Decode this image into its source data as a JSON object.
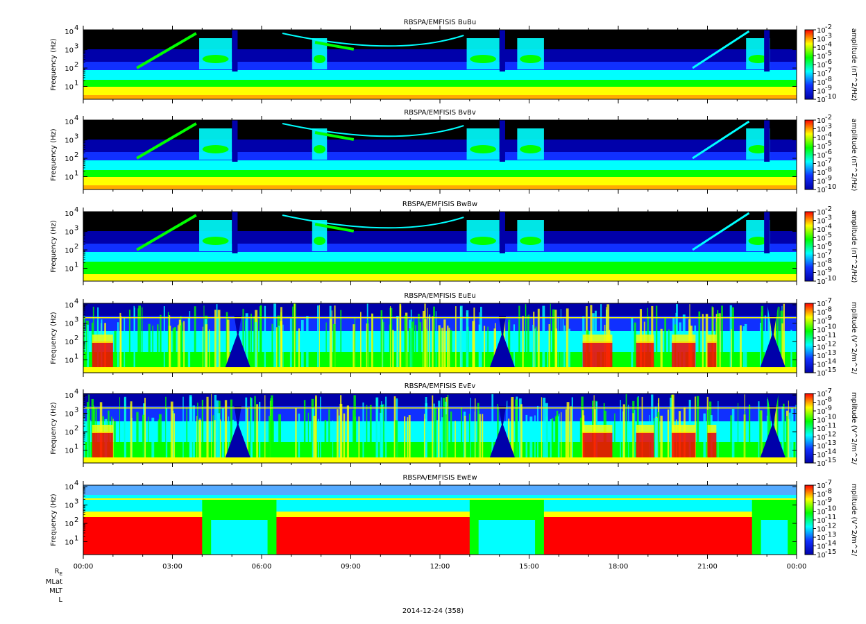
{
  "chart_data": [
    {
      "type": "heatmap",
      "title": "RBSPA/EMFISIS  BuBu",
      "ylabel": "Frequency (Hz)",
      "yscale": "log",
      "ylim": [
        2,
        12000
      ],
      "yticks": [
        "10",
        "10",
        "10",
        "10"
      ],
      "yticks_exp": [
        "1",
        "2",
        "3",
        "4"
      ],
      "colorbar_label": "amplitude (nT^2/Hz)",
      "colorbar_ticks_exp": [
        "-2",
        "-3",
        "-4",
        "-5",
        "-6",
        "-7",
        "-8",
        "-9",
        "-10"
      ],
      "colorbar_range_exp": [
        -10,
        -2
      ],
      "field": "magnetic"
    },
    {
      "type": "heatmap",
      "title": "RBSPA/EMFISIS  BvBv",
      "ylabel": "Frequency (Hz)",
      "yscale": "log",
      "ylim": [
        2,
        12000
      ],
      "yticks": [
        "10",
        "10",
        "10",
        "10"
      ],
      "yticks_exp": [
        "1",
        "2",
        "3",
        "4"
      ],
      "colorbar_label": "amplitude (nT^2/Hz)",
      "colorbar_ticks_exp": [
        "-2",
        "-3",
        "-4",
        "-5",
        "-6",
        "-7",
        "-8",
        "-9",
        "-10"
      ],
      "colorbar_range_exp": [
        -10,
        -2
      ],
      "field": "magnetic"
    },
    {
      "type": "heatmap",
      "title": "RBSPA/EMFISIS  BwBw",
      "ylabel": "Frequency (Hz)",
      "yscale": "log",
      "ylim": [
        2,
        12000
      ],
      "yticks": [
        "10",
        "10",
        "10",
        "10"
      ],
      "yticks_exp": [
        "1",
        "2",
        "3",
        "4"
      ],
      "colorbar_label": "amplitude (nT^2/Hz)",
      "colorbar_ticks_exp": [
        "-2",
        "-3",
        "-4",
        "-5",
        "-6",
        "-7",
        "-8",
        "-9",
        "-10"
      ],
      "colorbar_range_exp": [
        -10,
        -2
      ],
      "field": "magnetic_w"
    },
    {
      "type": "heatmap",
      "title": "RBSPA/EMFISIS  EuEu",
      "ylabel": "Frequency (Hz)",
      "yscale": "log",
      "ylim": [
        2,
        12000
      ],
      "yticks": [
        "10",
        "10",
        "10",
        "10"
      ],
      "yticks_exp": [
        "1",
        "2",
        "3",
        "4"
      ],
      "colorbar_label": "mplitude (V^2/m^2/",
      "colorbar_ticks_exp": [
        "-7",
        "-8",
        "-9",
        "-10",
        "-11",
        "-12",
        "-13",
        "-14",
        "-15"
      ],
      "colorbar_range_exp": [
        -15,
        -7
      ],
      "field": "electric"
    },
    {
      "type": "heatmap",
      "title": "RBSPA/EMFISIS  EvEv",
      "ylabel": "Frequency (Hz)",
      "yscale": "log",
      "ylim": [
        2,
        12000
      ],
      "yticks": [
        "10",
        "10",
        "10",
        "10"
      ],
      "yticks_exp": [
        "1",
        "2",
        "3",
        "4"
      ],
      "colorbar_label": "mplitude (V^2/m^2/",
      "colorbar_ticks_exp": [
        "-7",
        "-8",
        "-9",
        "-10",
        "-11",
        "-12",
        "-13",
        "-14",
        "-15"
      ],
      "colorbar_range_exp": [
        -15,
        -7
      ],
      "field": "electric"
    },
    {
      "type": "heatmap",
      "title": "RBSPA/EMFISIS  EwEw",
      "ylabel": "Frequency (Hz)",
      "yscale": "log",
      "ylim": [
        2,
        12000
      ],
      "yticks": [
        "10",
        "10",
        "10",
        "10"
      ],
      "yticks_exp": [
        "1",
        "2",
        "3",
        "4"
      ],
      "colorbar_label": "mplitude (V^2/m^2/",
      "colorbar_ticks_exp": [
        "-7",
        "-8",
        "-9",
        "-10",
        "-11",
        "-12",
        "-13",
        "-14",
        "-15"
      ],
      "colorbar_range_exp": [
        -15,
        -7
      ],
      "field": "electric_w"
    }
  ],
  "x_axis": {
    "tick_labels": [
      "00:00",
      "03:00",
      "06:00",
      "09:00",
      "12:00",
      "15:00",
      "18:00",
      "21:00",
      "00:00"
    ],
    "range_hours": [
      0,
      24
    ],
    "minor_tick_hours": 1
  },
  "ephemeris_labels": [
    "R",
    "MLat",
    "MLT",
    "L"
  ],
  "ephemeris_subscript": "E",
  "date_label": "2014-12-24 (358)",
  "colors": {
    "black": "#000000",
    "dark_blue": "#0000aa",
    "blue": "#1030ff",
    "cyan": "#00ffff",
    "green": "#00ff00",
    "yellow": "#ffff00",
    "red": "#ff0000"
  }
}
